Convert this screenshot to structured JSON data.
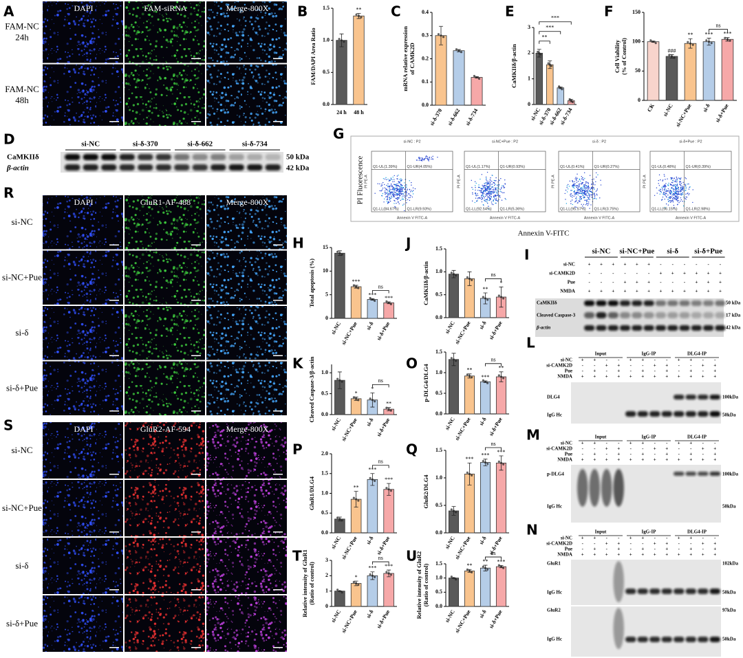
{
  "panels": {
    "A": {
      "letter": "A",
      "columns": [
        "DAPI",
        "FAM-siRNA",
        "Merge-800X"
      ],
      "rows": [
        [
          "FAM-NC",
          "24h"
        ],
        [
          "FAM-NC",
          "48h"
        ]
      ]
    },
    "D": {
      "letter": "D",
      "groups": [
        "si-NC",
        "si-δ-370",
        "si-δ-662",
        "si-δ-734"
      ],
      "bands": [
        "CaMKIIδ",
        "β-actin"
      ],
      "sizes": [
        "50 kDa",
        "42 kDa"
      ]
    },
    "G": {
      "letter": "G",
      "y_label": "PI Fluorescence",
      "x_label": "Annexin V-FITC",
      "inner_y": "PI PE-A",
      "inner_x": "Annexin V FITC-A",
      "plots": [
        {
          "title": "si-NC : P2",
          "quadrants": [
            "Q1-UL(1.39%)",
            "Q1-UR(4.05%)",
            "Q1-LL(84.67%)",
            "Q1-LR(9.93%)"
          ]
        },
        {
          "title": "si-NC+Pue : P2",
          "quadrants": [
            "Q1-UL(1.17%)",
            "Q1-UR(0.93%)",
            "Q1-LL(92.54%)",
            "Q1-LR(5.36%)"
          ]
        },
        {
          "title": "si-δ : P2",
          "quadrants": [
            "Q1-UL(0.41%)",
            "Q1-UR(0.27%)",
            "Q1-LL(95.57%)",
            "Q1-LR(3.75%)"
          ]
        },
        {
          "title": "si-δ+Pue : P2",
          "quadrants": [
            "Q1-UL(0.48%)",
            "Q1-UR(0.39%)",
            "Q1-LL(96.15%)",
            "Q1-LR(2.98%)"
          ]
        }
      ]
    },
    "R": {
      "letter": "R",
      "columns": [
        "DAPI",
        "GluR1-AF-488",
        "Merge-800X"
      ],
      "rows": [
        [
          "si-NC"
        ],
        [
          "si-NC+Pue"
        ],
        [
          "si-δ"
        ],
        [
          "si-δ+Pue"
        ]
      ]
    },
    "S": {
      "letter": "S",
      "columns": [
        "DAPI",
        "GluR2-AF-594",
        "Merge-800X"
      ],
      "rows": [
        [
          "si-NC"
        ],
        [
          "si-NC+Pue"
        ],
        [
          "si-δ"
        ],
        [
          "si-δ+Pue"
        ]
      ]
    },
    "I": {
      "letter": "I",
      "groups": [
        "si-NC",
        "si-NC+Pue",
        "si-δ",
        "si-δ+Pue"
      ],
      "conditions": [
        {
          "name": "si-NC",
          "signs": [
            "+",
            "+",
            "+",
            "+",
            "+",
            "+",
            "-",
            "-",
            "-",
            "-",
            "-",
            "-"
          ]
        },
        {
          "name": "si-CAMK2D",
          "signs": [
            "-",
            "-",
            "-",
            "-",
            "-",
            "-",
            "+",
            "+",
            "+",
            "+",
            "+",
            "+"
          ]
        },
        {
          "name": "Pue",
          "signs": [
            "-",
            "-",
            "-",
            "+",
            "+",
            "+",
            "-",
            "-",
            "-",
            "+",
            "+",
            "+"
          ]
        },
        {
          "name": "NMDA",
          "signs": [
            "+",
            "+",
            "+",
            "+",
            "+",
            "+",
            "+",
            "+",
            "+",
            "+",
            "+",
            "+"
          ]
        }
      ],
      "bands": [
        "CaMKIIδ",
        "Cleaved Caspase-3",
        "β-actin"
      ],
      "sizes": [
        "50 kDa",
        "17 kDa",
        "42 kDa"
      ]
    },
    "L": {
      "letter": "L",
      "groups": [
        "Input",
        "IgG-IP",
        "DLG4-IP"
      ],
      "conditions": [
        {
          "name": "si-NC",
          "signs": [
            "+",
            "+",
            "-",
            "-",
            "+",
            "+",
            "-",
            "-",
            "+",
            "+",
            "-",
            "-"
          ]
        },
        {
          "name": "si-CAMK2D",
          "signs": [
            "-",
            "-",
            "+",
            "+",
            "-",
            "-",
            "+",
            "+",
            "-",
            "-",
            "+",
            "+"
          ]
        },
        {
          "name": "Pue",
          "signs": [
            "-",
            "+",
            "-",
            "+",
            "-",
            "+",
            "-",
            "+",
            "-",
            "+",
            "-",
            "+"
          ]
        },
        {
          "name": "NMDA",
          "signs": [
            "+",
            "+",
            "+",
            "+",
            "+",
            "+",
            "+",
            "+",
            "+",
            "+",
            "+",
            "+"
          ]
        }
      ],
      "bands": [
        "DLG4",
        "IgG Hc"
      ],
      "sizes": [
        "100kDa",
        "50kDa"
      ]
    },
    "M": {
      "letter": "M",
      "groups": [
        "Input",
        "IgG-IP",
        "DLG4-IP"
      ],
      "conditions": [
        {
          "name": "si-NC",
          "signs": [
            "+",
            "+",
            "-",
            "-",
            "+",
            "+",
            "-",
            "-",
            "+",
            "+",
            "-",
            "-"
          ]
        },
        {
          "name": "si-CAMK2D",
          "signs": [
            "-",
            "-",
            "+",
            "+",
            "-",
            "-",
            "+",
            "+",
            "-",
            "-",
            "+",
            "+"
          ]
        },
        {
          "name": "Pue",
          "signs": [
            "-",
            "+",
            "-",
            "+",
            "-",
            "+",
            "-",
            "+",
            "-",
            "+",
            "-",
            "+"
          ]
        },
        {
          "name": "NMDA",
          "signs": [
            "+",
            "+",
            "+",
            "+",
            "+",
            "+",
            "+",
            "+",
            "+",
            "+",
            "+",
            "+"
          ]
        }
      ],
      "bands": [
        "p-DLG4",
        "IgG Hc"
      ],
      "sizes": [
        "100kDa",
        "50kDa"
      ]
    },
    "N": {
      "letter": "N",
      "groups": [
        "Input",
        "IgG-IP",
        "DLG4-IP"
      ],
      "conditions": [
        {
          "name": "si-NC",
          "signs": [
            "+",
            "+",
            "-",
            "-",
            "+",
            "+",
            "-",
            "-",
            "+",
            "+",
            "-",
            "-"
          ]
        },
        {
          "name": "si-CAMK2D",
          "signs": [
            "-",
            "-",
            "+",
            "+",
            "-",
            "-",
            "+",
            "+",
            "-",
            "-",
            "+",
            "+"
          ]
        },
        {
          "name": "Pue",
          "signs": [
            "-",
            "+",
            "-",
            "+",
            "-",
            "+",
            "-",
            "+",
            "-",
            "+",
            "-",
            "+"
          ]
        },
        {
          "name": "NMDA",
          "signs": [
            "+",
            "+",
            "+",
            "+",
            "+",
            "+",
            "+",
            "+",
            "+",
            "+",
            "+",
            "+"
          ]
        }
      ],
      "bands": [
        "GluR1",
        "IgG Hc",
        "GluR2",
        "IgG Hc"
      ],
      "sizes": [
        "102kDa",
        "50kDa",
        "97kDa",
        "50kDa"
      ]
    }
  },
  "chart_data": [
    {
      "letter": "B",
      "type": "bar",
      "y_label": "FAM/DAPI Area Ratio",
      "categories": [
        "24 h",
        "48 h"
      ],
      "values": [
        1.0,
        1.38
      ],
      "errors": [
        0.1,
        0.04
      ],
      "colors": [
        "#595959",
        "#f9c48e"
      ],
      "ylim": [
        0,
        1.5
      ],
      "yticks": [
        {
          "value": 0,
          "label": "0.0"
        },
        0.5,
        {
          "value": 1,
          "label": "1.0"
        },
        1.5
      ],
      "annotations": [
        null,
        "**"
      ]
    },
    {
      "letter": "C",
      "type": "bar",
      "y_label": [
        "mRNA relative expression",
        "of CAMK2D"
      ],
      "categories": [
        "si-δ-370",
        "si-δ-662",
        "si-δ-734"
      ],
      "values": [
        0.3,
        0.235,
        0.12
      ],
      "errors": [
        0.04,
        0.005,
        0.003
      ],
      "colors": [
        "#f9c48e",
        "#b5cde8",
        "#f6a8a8"
      ],
      "ylim": [
        0,
        0.4
      ],
      "yticks": [
        {
          "value": 0,
          "label": "0.0"
        },
        0.1,
        0.2,
        0.3,
        0.4
      ]
    },
    {
      "letter": "E",
      "type": "bar",
      "y_label": "CaMKIIδ/β-actin",
      "categories": [
        "si-NC",
        "si-δ-370",
        "si-δ-662",
        "si-δ-734"
      ],
      "values": [
        2.0,
        1.55,
        0.65,
        0.15
      ],
      "errors": [
        0.15,
        0.15,
        0.03,
        0.05
      ],
      "colors": [
        "#595959",
        "#f9c48e",
        "#b5cde8",
        "#f6a8a8"
      ],
      "ylim": [
        0,
        3
      ],
      "yticks": [
        0,
        1,
        2,
        3
      ],
      "brackets": [
        {
          "between": [
            "si-NC",
            "si-δ-370"
          ],
          "label": "**"
        },
        {
          "between": [
            "si-NC",
            "si-δ-662"
          ],
          "label": "***"
        },
        {
          "between": [
            "si-NC",
            "si-δ-734"
          ],
          "label": "***"
        }
      ]
    },
    {
      "letter": "F",
      "type": "bar",
      "y_label": [
        "Cell Viability",
        "(% of Control)"
      ],
      "categories": [
        "CK",
        "si-NC",
        "si-NC+Pue",
        "si-δ",
        "si-δ+Pue"
      ],
      "values": [
        100,
        75,
        97,
        100,
        104
      ],
      "errors": [
        1,
        3,
        8,
        6,
        3
      ],
      "colors": [
        "#f8d4cc",
        "#595959",
        "#f9c48e",
        "#b5cde8",
        "#f6a8a8"
      ],
      "ylim": [
        0,
        150
      ],
      "yticks": [
        0,
        50,
        100,
        150
      ],
      "annotations": [
        null,
        "###",
        "**",
        "***",
        "***"
      ],
      "brackets": [
        {
          "between": [
            "si-δ",
            "si-δ+Pue"
          ],
          "label": "ns"
        }
      ]
    },
    {
      "letter": "H",
      "type": "bar",
      "y_label": "Total apoptosis (%)",
      "categories": [
        "si-NC",
        "si-NC+Pue",
        "si-δ",
        "si-δ+Pue"
      ],
      "values": [
        13.8,
        6.7,
        4.0,
        3.3
      ],
      "errors": [
        0.5,
        0.3,
        0.15,
        0.2
      ],
      "colors": [
        "#595959",
        "#f9c48e",
        "#b5cde8",
        "#f6a8a8"
      ],
      "ylim": [
        0,
        15
      ],
      "yticks": [
        0,
        5,
        10,
        15
      ],
      "annotations": [
        null,
        "***",
        "***",
        "***"
      ],
      "brackets": [
        {
          "between": [
            "si-δ",
            "si-δ+Pue"
          ],
          "label": "ns"
        }
      ]
    },
    {
      "letter": "J",
      "type": "bar",
      "y_label": "CaMKIIδ/β-actin",
      "categories": [
        "si-NC",
        "si-NC+Pue",
        "si-δ",
        "si-δ+Pue"
      ],
      "values": [
        0.95,
        0.85,
        0.42,
        0.45
      ],
      "errors": [
        0.08,
        0.15,
        0.12,
        0.22
      ],
      "colors": [
        "#595959",
        "#f9c48e",
        "#b5cde8",
        "#f6a8a8"
      ],
      "ylim": [
        0,
        1.5
      ],
      "yticks": [
        {
          "value": 0,
          "label": "0.0"
        },
        0.5,
        {
          "value": 1,
          "label": "1.0"
        },
        1.5
      ],
      "annotations": [
        null,
        null,
        "**",
        "*"
      ],
      "brackets": [
        {
          "between": [
            "si-δ",
            "si-δ+Pue"
          ],
          "label": "ns"
        }
      ]
    },
    {
      "letter": "K",
      "type": "bar",
      "y_label": "Cleaved Caspase-3/β-actin",
      "categories": [
        "si-NC",
        "si-NC+Pue",
        "si-δ",
        "si-δ+Pue"
      ],
      "values": [
        0.82,
        0.38,
        0.35,
        0.13
      ],
      "errors": [
        0.2,
        0.04,
        0.17,
        0.04
      ],
      "colors": [
        "#595959",
        "#f9c48e",
        "#b5cde8",
        "#f6a8a8"
      ],
      "ylim": [
        0,
        1.2
      ],
      "yticks": [
        {
          "value": 0,
          "label": "0.0"
        },
        0.5,
        {
          "value": 1,
          "label": "1.0"
        }
      ],
      "annotations": [
        null,
        "*",
        "*",
        "**"
      ],
      "brackets": [
        {
          "between": [
            "si-δ",
            "si-δ+Pue"
          ],
          "label": "ns"
        }
      ]
    },
    {
      "letter": "O",
      "type": "bar",
      "y_label": "p-DLG4/DLG4",
      "categories": [
        "si-NC",
        "si-NC+Pue",
        "si-δ",
        "si-δ+Pue"
      ],
      "values": [
        1.32,
        0.92,
        0.78,
        0.9
      ],
      "errors": [
        0.15,
        0.05,
        0.02,
        0.12
      ],
      "colors": [
        "#595959",
        "#f9c48e",
        "#b5cde8",
        "#f6a8a8"
      ],
      "ylim": [
        0,
        1.5
      ],
      "yticks": [
        {
          "value": 0,
          "label": "0.0"
        },
        0.5,
        {
          "value": 1,
          "label": "1.0"
        },
        1.5
      ],
      "annotations": [
        null,
        "**",
        "***",
        "**"
      ],
      "brackets": [
        {
          "between": [
            "si-δ",
            "si-δ+Pue"
          ],
          "label": "ns"
        }
      ]
    },
    {
      "letter": "P",
      "type": "bar",
      "y_label": "GluR1/DLG4",
      "categories": [
        "si-NC",
        "si-NC+Pue",
        "si-δ",
        "si-δ+Pue"
      ],
      "values": [
        0.35,
        0.85,
        1.35,
        1.1
      ],
      "errors": [
        0.05,
        0.2,
        0.15,
        0.15
      ],
      "colors": [
        "#595959",
        "#f9c48e",
        "#b5cde8",
        "#f6a8a8"
      ],
      "ylim": [
        0,
        2
      ],
      "yticks": [
        {
          "value": 0,
          "label": "0.0"
        },
        0.5,
        {
          "value": 1,
          "label": "1.0"
        },
        1.5,
        {
          "value": 2,
          "label": "2.0"
        }
      ],
      "annotations": [
        null,
        "**",
        "***",
        "***"
      ],
      "brackets": [
        {
          "between": [
            "si-δ",
            "si-δ+Pue"
          ],
          "label": "ns"
        }
      ]
    },
    {
      "letter": "Q",
      "type": "bar",
      "y_label": "GluR2/DLG4",
      "categories": [
        "si-NC",
        "si-NC+Pue",
        "si-δ",
        "si-δ+Pue"
      ],
      "values": [
        0.4,
        1.07,
        1.28,
        1.27
      ],
      "errors": [
        0.08,
        0.2,
        0.06,
        0.13
      ],
      "colors": [
        "#595959",
        "#f9c48e",
        "#b5cde8",
        "#f6a8a8"
      ],
      "ylim": [
        0,
        1.5
      ],
      "yticks": [
        {
          "value": 0,
          "label": "0.0"
        },
        0.5,
        {
          "value": 1,
          "label": "1.0"
        },
        1.5
      ],
      "annotations": [
        null,
        "***",
        "***",
        "***"
      ],
      "brackets": [
        {
          "between": [
            "si-δ",
            "si-δ+Pue"
          ],
          "label": "ns"
        }
      ]
    },
    {
      "letter": "T",
      "type": "bar",
      "y_label": [
        "Relative intensity of GluR1",
        "(Ratio of control)"
      ],
      "categories": [
        "si-NC",
        "si-NC+Pue",
        "si-δ",
        "si-δ+Pue"
      ],
      "values": [
        1.0,
        1.5,
        2.0,
        2.15
      ],
      "errors": [
        0.01,
        0.15,
        0.25,
        0.22
      ],
      "colors": [
        "#595959",
        "#f9c48e",
        "#b5cde8",
        "#f6a8a8"
      ],
      "ylim": [
        0,
        3
      ],
      "yticks": [
        0,
        1,
        2,
        3
      ],
      "annotations": [
        null,
        "*",
        "***",
        "***"
      ],
      "brackets": [
        {
          "between": [
            "si-δ",
            "si-δ+Pue"
          ],
          "label": "ns"
        }
      ]
    },
    {
      "letter": "U",
      "type": "bar",
      "y_label": [
        "Relative intensity of GluR2",
        "(Ratio of control)"
      ],
      "categories": [
        "si-NC",
        "si-NC+Pue",
        "si-δ",
        "si-δ+Pue"
      ],
      "values": [
        1.0,
        1.25,
        1.35,
        1.4
      ],
      "errors": [
        0.01,
        0.05,
        0.1,
        0.04
      ],
      "colors": [
        "#595959",
        "#f9c48e",
        "#b5cde8",
        "#f6a8a8"
      ],
      "ylim": [
        0,
        1.5
      ],
      "yticks": [
        {
          "value": 0,
          "label": "0.0"
        },
        0.5,
        {
          "value": 1,
          "label": "1.0"
        },
        1.5
      ],
      "annotations": [
        null,
        "**",
        "**",
        "***"
      ],
      "brackets": [
        {
          "between": [
            "si-δ",
            "si-δ+Pue"
          ],
          "label": "ns"
        }
      ]
    }
  ]
}
